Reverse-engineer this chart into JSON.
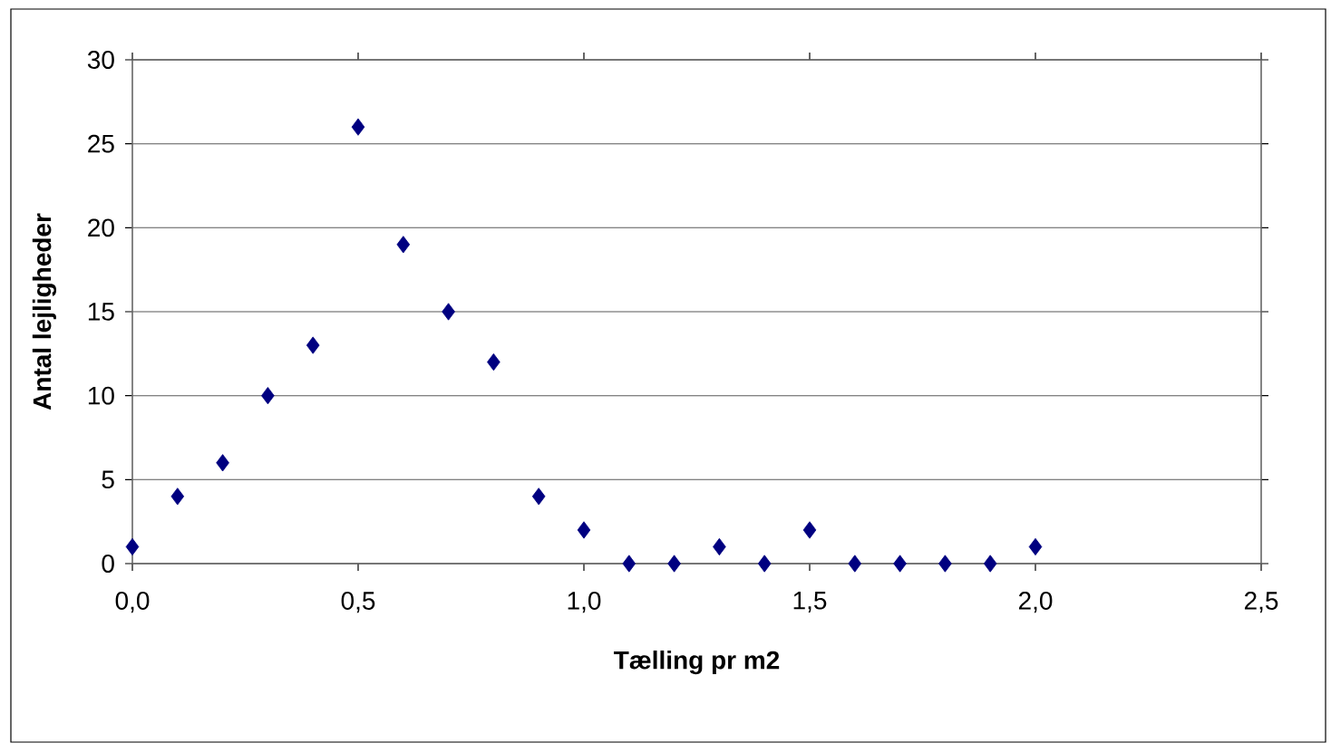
{
  "chart_data": {
    "type": "scatter",
    "xlabel": "Tælling pr m2",
    "ylabel": "Antal lejligheder",
    "x": [
      0,
      0.1,
      0.2,
      0.3,
      0.4,
      0.5,
      0.6,
      0.7,
      0.8,
      0.9,
      1.0,
      1.1,
      1.2,
      1.3,
      1.4,
      1.5,
      1.6,
      1.7,
      1.8,
      1.9,
      2.0
    ],
    "values": [
      1,
      4,
      6,
      10,
      13,
      26,
      19,
      15,
      12,
      4,
      2,
      0,
      0,
      1,
      0,
      2,
      0,
      0,
      0,
      0,
      1
    ],
    "color": "#000080",
    "marker": "diamond",
    "grid": "y",
    "xlim": [
      0,
      2.5
    ],
    "xticks": [
      {
        "value": 0,
        "label": "0,0"
      },
      {
        "value": 0.5,
        "label": "0,5"
      },
      {
        "value": 1.0,
        "label": "1,0"
      },
      {
        "value": 1.5,
        "label": "1,5"
      },
      {
        "value": 2.0,
        "label": "2,0"
      },
      {
        "value": 2.5,
        "label": "2,5"
      }
    ],
    "ylim": [
      0,
      30
    ],
    "yticks": [
      0,
      5,
      10,
      15,
      20,
      25,
      30
    ]
  }
}
